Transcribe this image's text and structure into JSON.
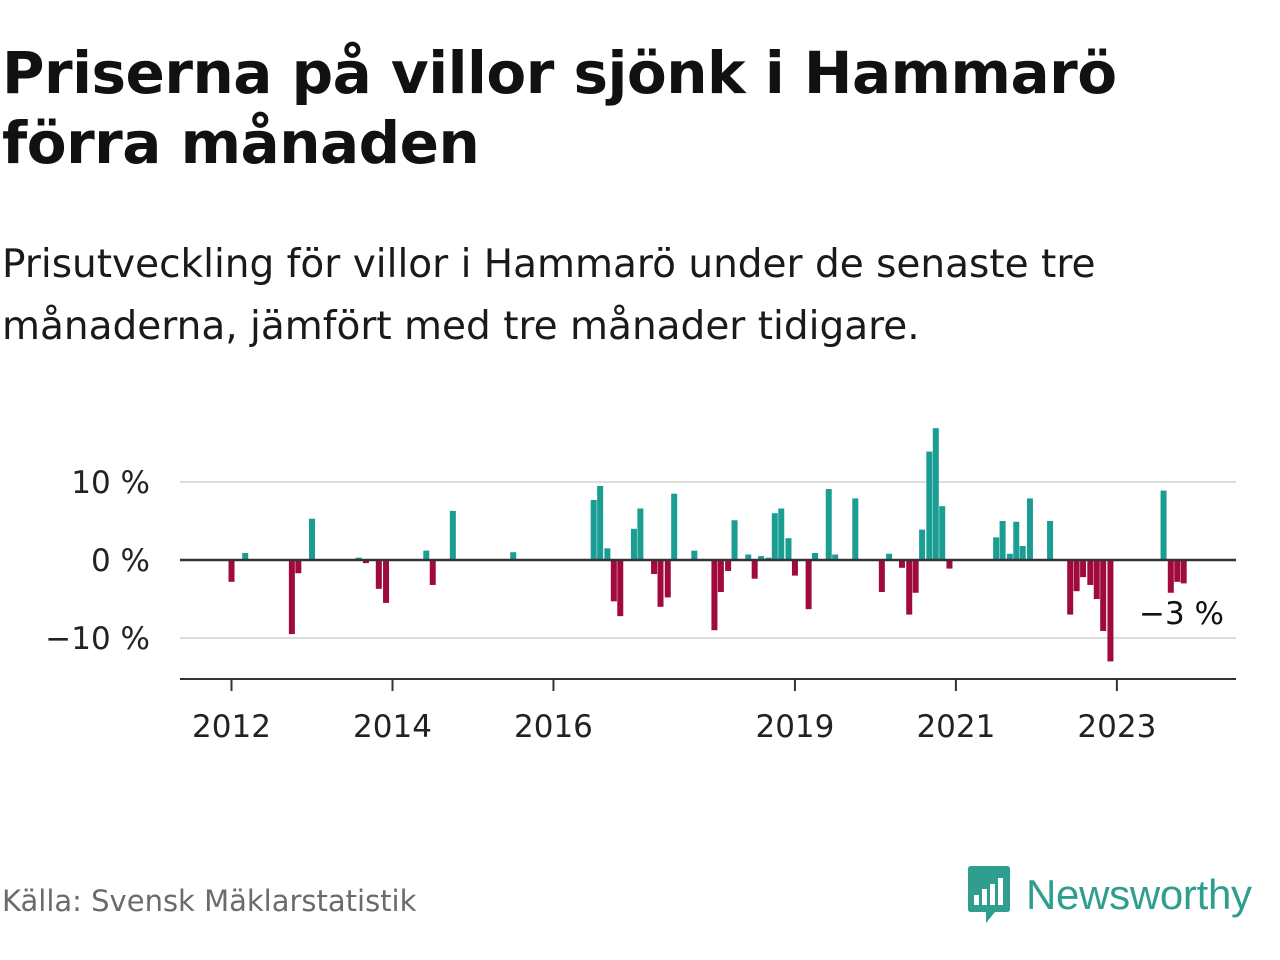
{
  "title": "Priserna på villor sjönk i Hammarö förra månaden",
  "subtitle": "Prisutveckling för villor i Hammarö under de senaste tre månaderna, jämfört med tre månader tidigare.",
  "source": "Källa: Svensk Mäklarstatistik",
  "brand": "Newsworthy",
  "colors": {
    "positive": "#1a9e94",
    "negative": "#a00b3c",
    "grid": "#dddddd",
    "axis": "#333333",
    "brand": "#2f9e8f"
  },
  "chart_data": {
    "type": "bar",
    "title": "Priserna på villor sjönk i Hammarö förra månaden",
    "subtitle": "Prisutveckling för villor i Hammarö under de senaste tre månaderna, jämfört med tre månader tidigare.",
    "y_ticks": [
      {
        "value": 10,
        "label": "10 %"
      },
      {
        "value": 0,
        "label": "0 %"
      },
      {
        "value": -10,
        "label": "−10 %"
      }
    ],
    "ylim": [
      -15,
      17
    ],
    "x_ticks": [
      {
        "x": 2012.0,
        "label": "2012"
      },
      {
        "x": 2014.0,
        "label": "2014"
      },
      {
        "x": 2016.0,
        "label": "2016"
      },
      {
        "x": 2019.0,
        "label": "2019"
      },
      {
        "x": 2021.0,
        "label": "2021"
      },
      {
        "x": 2023.0,
        "label": "2023"
      }
    ],
    "xlim": [
      2011.36,
      2024.48
    ],
    "grid": true,
    "end_label": "−3 %",
    "series": [
      {
        "values": [
          {
            "x": 2012.0,
            "y": -2.8
          },
          {
            "x": 2012.17,
            "y": 0.9
          },
          {
            "x": 2012.75,
            "y": -9.5
          },
          {
            "x": 2012.83,
            "y": -1.7
          },
          {
            "x": 2013.0,
            "y": 5.3
          },
          {
            "x": 2013.58,
            "y": 0.3
          },
          {
            "x": 2013.67,
            "y": -0.4
          },
          {
            "x": 2013.83,
            "y": -3.7
          },
          {
            "x": 2013.92,
            "y": -5.5
          },
          {
            "x": 2014.42,
            "y": 1.2
          },
          {
            "x": 2014.5,
            "y": -3.2
          },
          {
            "x": 2014.75,
            "y": 6.3
          },
          {
            "x": 2015.5,
            "y": 1.0
          },
          {
            "x": 2016.5,
            "y": 7.7
          },
          {
            "x": 2016.58,
            "y": 9.5
          },
          {
            "x": 2016.67,
            "y": 1.5
          },
          {
            "x": 2016.75,
            "y": -5.3
          },
          {
            "x": 2016.83,
            "y": -7.2
          },
          {
            "x": 2017.0,
            "y": 4.0
          },
          {
            "x": 2017.08,
            "y": 6.6
          },
          {
            "x": 2017.25,
            "y": -1.8
          },
          {
            "x": 2017.33,
            "y": -6.0
          },
          {
            "x": 2017.42,
            "y": -4.8
          },
          {
            "x": 2017.5,
            "y": 8.5
          },
          {
            "x": 2017.75,
            "y": 1.2
          },
          {
            "x": 2018.0,
            "y": -9.0
          },
          {
            "x": 2018.08,
            "y": -4.1
          },
          {
            "x": 2018.17,
            "y": -1.4
          },
          {
            "x": 2018.25,
            "y": 5.1
          },
          {
            "x": 2018.42,
            "y": 0.7
          },
          {
            "x": 2018.5,
            "y": -2.4
          },
          {
            "x": 2018.58,
            "y": 0.5
          },
          {
            "x": 2018.67,
            "y": 0.3
          },
          {
            "x": 2018.75,
            "y": 6.0
          },
          {
            "x": 2018.83,
            "y": 6.6
          },
          {
            "x": 2018.92,
            "y": 2.8
          },
          {
            "x": 2019.0,
            "y": -2.0
          },
          {
            "x": 2019.17,
            "y": -6.3
          },
          {
            "x": 2019.25,
            "y": 0.9
          },
          {
            "x": 2019.42,
            "y": 9.1
          },
          {
            "x": 2019.5,
            "y": 0.7
          },
          {
            "x": 2019.75,
            "y": 7.9
          },
          {
            "x": 2020.08,
            "y": -4.1
          },
          {
            "x": 2020.17,
            "y": 0.8
          },
          {
            "x": 2020.33,
            "y": -1.0
          },
          {
            "x": 2020.42,
            "y": -7.0
          },
          {
            "x": 2020.5,
            "y": -4.2
          },
          {
            "x": 2020.58,
            "y": 3.9
          },
          {
            "x": 2020.67,
            "y": 13.9
          },
          {
            "x": 2020.75,
            "y": 16.9
          },
          {
            "x": 2020.83,
            "y": 6.9
          },
          {
            "x": 2020.92,
            "y": -1.1
          },
          {
            "x": 2021.5,
            "y": 2.9
          },
          {
            "x": 2021.58,
            "y": 5.0
          },
          {
            "x": 2021.67,
            "y": 0.8
          },
          {
            "x": 2021.75,
            "y": 4.9
          },
          {
            "x": 2021.83,
            "y": 1.8
          },
          {
            "x": 2021.92,
            "y": 7.9
          },
          {
            "x": 2022.17,
            "y": 5.0
          },
          {
            "x": 2022.42,
            "y": -7.0
          },
          {
            "x": 2022.5,
            "y": -4.0
          },
          {
            "x": 2022.58,
            "y": -2.2
          },
          {
            "x": 2022.67,
            "y": -3.2
          },
          {
            "x": 2022.75,
            "y": -5.0
          },
          {
            "x": 2022.83,
            "y": -9.1
          },
          {
            "x": 2022.92,
            "y": -13.0
          },
          {
            "x": 2023.58,
            "y": 8.9
          },
          {
            "x": 2023.67,
            "y": -4.2
          },
          {
            "x": 2023.75,
            "y": -2.8
          },
          {
            "x": 2023.83,
            "y": -3.0
          }
        ]
      }
    ]
  }
}
